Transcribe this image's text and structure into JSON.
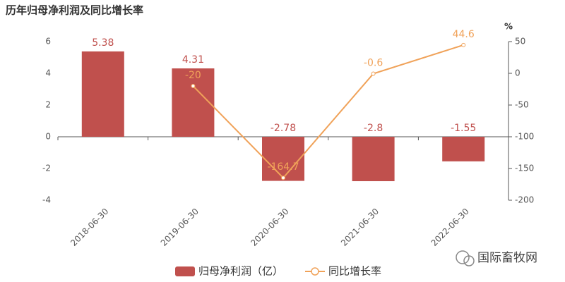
{
  "chart_data": {
    "type": "bar",
    "title": "历年归母净利润及同比增长率",
    "y2_label": "%",
    "categories": [
      "2018-06-30",
      "2019-06-30",
      "2020-06-30",
      "2021-06-30",
      "2022-06-30"
    ],
    "series": [
      {
        "name": "归母净利润（亿）",
        "type": "bar",
        "color": "#c0504d",
        "values": [
          5.38,
          4.31,
          -2.78,
          -2.8,
          -1.55
        ]
      },
      {
        "name": "同比增长率",
        "type": "line",
        "axis": "y2",
        "color": "#f0a259",
        "values": [
          null,
          -20,
          -164.7,
          -0.6,
          44.6
        ]
      }
    ],
    "ylim": [
      -4,
      6
    ],
    "yticks": [
      -4,
      -2,
      0,
      2,
      4,
      6
    ],
    "y2lim": [
      -200,
      50
    ],
    "y2ticks": [
      -200,
      -150,
      -100,
      -50,
      0,
      50
    ],
    "grid": false,
    "legend": "bottom",
    "watermark": "国际畜牧网"
  }
}
